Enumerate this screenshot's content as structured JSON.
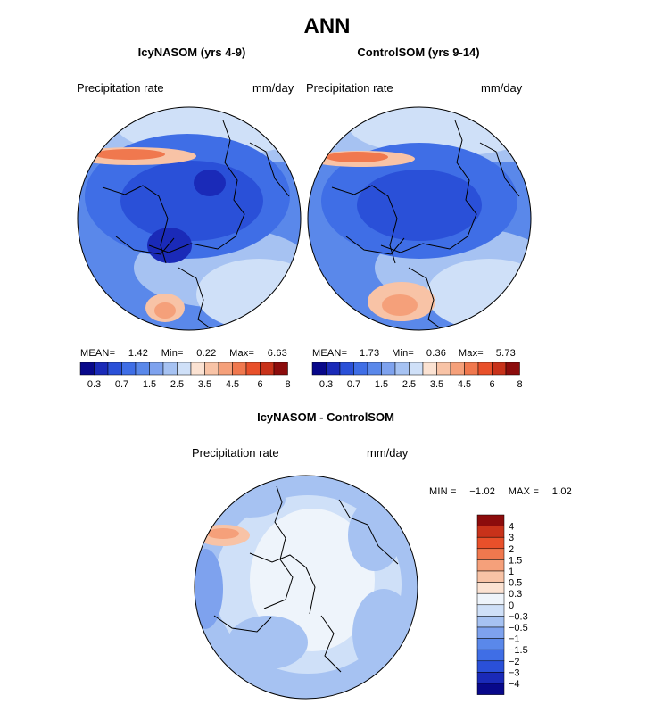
{
  "figure_title": "ANN",
  "panels": [
    {
      "title": "IcyNASOM (yrs 4-9)",
      "variable": "Precipitation rate",
      "units": "mm/day",
      "stats": {
        "mean_label": "MEAN=",
        "mean": "1.42",
        "min_label": "Min=",
        "min": "0.22",
        "max_label": "Max=",
        "max": "6.63"
      }
    },
    {
      "title": "ControlSOM (yrs 9-14)",
      "variable": "Precipitation rate",
      "units": "mm/day",
      "stats": {
        "mean_label": "MEAN=",
        "mean": "1.73",
        "min_label": "Min=",
        "min": "0.36",
        "max_label": "Max=",
        "max": "5.73"
      }
    },
    {
      "title": "IcyNASOM - ControlSOM",
      "variable": "Precipitation rate",
      "units": "mm/day",
      "stats": {
        "min_label": "MIN =",
        "min": "−1.02",
        "max_label": "MAX =",
        "max": "1.02"
      }
    }
  ],
  "colorbar_top": {
    "colors": [
      "#08088a",
      "#1a2ab8",
      "#2a50d8",
      "#3f6ee6",
      "#5a88ea",
      "#7ea2ee",
      "#a6c2f2",
      "#cfe0f8",
      "#fbe2d2",
      "#f8c3a6",
      "#f5a07a",
      "#f0784e",
      "#e8502a",
      "#c8321a",
      "#8c0c0c"
    ],
    "ticks": [
      "0.3",
      "0.7",
      "1.5",
      "2.5",
      "3.5",
      "4.5",
      "6",
      "8"
    ]
  },
  "colorbar_diff": {
    "colors": [
      "#8c0c0c",
      "#c8321a",
      "#e8502a",
      "#f0784e",
      "#f5a07a",
      "#f8c3a6",
      "#fbe2d2",
      "#eef4fb",
      "#cfe0f8",
      "#a6c2f2",
      "#7ea2ee",
      "#5a88ea",
      "#3f6ee6",
      "#2a50d8",
      "#1a2ab8",
      "#08088a"
    ],
    "ticks": [
      "4",
      "3",
      "2",
      "1.5",
      "1",
      "0.5",
      "0.3",
      "0",
      "−0.3",
      "−0.5",
      "−1",
      "−1.5",
      "−2",
      "−3",
      "−4"
    ]
  },
  "chart_data": [
    {
      "type": "heatmap",
      "title": "IcyNASOM (yrs 4-9)",
      "variable": "Precipitation rate",
      "units": "mm/day",
      "projection": "north-polar-stereographic",
      "mean": 1.42,
      "min": 0.22,
      "max": 6.63,
      "contour_levels": [
        0.3,
        0.5,
        0.7,
        1,
        1.5,
        2,
        2.5,
        3,
        3.5,
        4,
        4.5,
        5,
        6,
        7,
        8
      ]
    },
    {
      "type": "heatmap",
      "title": "ControlSOM (yrs 9-14)",
      "variable": "Precipitation rate",
      "units": "mm/day",
      "projection": "north-polar-stereographic",
      "mean": 1.73,
      "min": 0.36,
      "max": 5.73,
      "contour_levels": [
        0.3,
        0.5,
        0.7,
        1,
        1.5,
        2,
        2.5,
        3,
        3.5,
        4,
        4.5,
        5,
        6,
        7,
        8
      ]
    },
    {
      "type": "heatmap",
      "title": "IcyNASOM - ControlSOM",
      "variable": "Precipitation rate",
      "units": "mm/day",
      "projection": "north-polar-stereographic",
      "min": -1.02,
      "max": 1.02,
      "contour_levels": [
        -4,
        -3,
        -2,
        -1.5,
        -1,
        -0.5,
        -0.3,
        0,
        0.3,
        0.5,
        1,
        1.5,
        2,
        3,
        4
      ]
    }
  ]
}
